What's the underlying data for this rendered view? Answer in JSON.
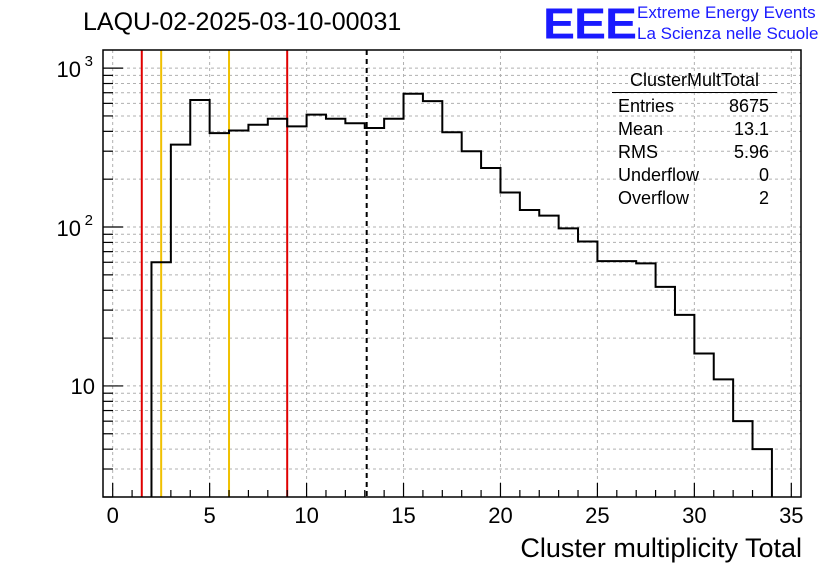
{
  "header": {
    "title": "LAQU-02-2025-03-10-00031",
    "logo_text": "EEE",
    "org_line1": "Extreme Energy Events",
    "org_line2": "La Scienza nelle Scuole"
  },
  "stats": {
    "name": "ClusterMultTotal",
    "rows": [
      {
        "label": "Entries",
        "value": "8675"
      },
      {
        "label": "Mean",
        "value": "13.1"
      },
      {
        "label": "RMS",
        "value": "5.96"
      },
      {
        "label": "Underflow",
        "value": "0"
      },
      {
        "label": "Overflow",
        "value": "2"
      }
    ]
  },
  "colors": {
    "red_lines": "#e00000",
    "yellow_lines": "#f0c000",
    "histogram": "#000000",
    "mean_line": "#000000",
    "grid": "#b0b0b0",
    "logo": "#1a1aff"
  },
  "chart_data": {
    "type": "histogram",
    "title": "LAQU-02-2025-03-10-00031",
    "xlabel": "Cluster multiplicity Total",
    "ylabel": "",
    "xlim": [
      -0.5,
      35.5
    ],
    "ylim": [
      2,
      1300
    ],
    "yscale": "log",
    "grid": true,
    "bin_width": 1,
    "bins": [
      {
        "x": 2.5,
        "y": 60
      },
      {
        "x": 3.5,
        "y": 330
      },
      {
        "x": 4.5,
        "y": 630
      },
      {
        "x": 5.5,
        "y": 390
      },
      {
        "x": 6.5,
        "y": 405
      },
      {
        "x": 7.5,
        "y": 440
      },
      {
        "x": 8.5,
        "y": 480
      },
      {
        "x": 9.5,
        "y": 430
      },
      {
        "x": 10.5,
        "y": 510
      },
      {
        "x": 11.5,
        "y": 480
      },
      {
        "x": 12.5,
        "y": 450
      },
      {
        "x": 13.5,
        "y": 420
      },
      {
        "x": 14.5,
        "y": 480
      },
      {
        "x": 15.5,
        "y": 690
      },
      {
        "x": 16.5,
        "y": 620
      },
      {
        "x": 17.5,
        "y": 395
      },
      {
        "x": 18.5,
        "y": 300
      },
      {
        "x": 19.5,
        "y": 235
      },
      {
        "x": 20.5,
        "y": 165
      },
      {
        "x": 21.5,
        "y": 128
      },
      {
        "x": 22.5,
        "y": 118
      },
      {
        "x": 23.5,
        "y": 98
      },
      {
        "x": 24.5,
        "y": 81
      },
      {
        "x": 25.5,
        "y": 61
      },
      {
        "x": 26.5,
        "y": 61
      },
      {
        "x": 27.5,
        "y": 59
      },
      {
        "x": 28.5,
        "y": 42
      },
      {
        "x": 29.5,
        "y": 28
      },
      {
        "x": 30.5,
        "y": 16
      },
      {
        "x": 31.5,
        "y": 11
      },
      {
        "x": 32.5,
        "y": 6
      },
      {
        "x": 33.5,
        "y": 4
      }
    ],
    "vertical_lines": [
      {
        "x": 1.5,
        "color": "red"
      },
      {
        "x": 2.5,
        "color": "yellow"
      },
      {
        "x": 6.0,
        "color": "yellow"
      },
      {
        "x": 9.0,
        "color": "red"
      },
      {
        "x": 13.1,
        "color": "black-dashed"
      }
    ],
    "x_ticks": [
      0,
      5,
      10,
      15,
      20,
      25,
      30,
      35
    ],
    "x_tick_labels": [
      "0",
      "5",
      "10",
      "15",
      "20",
      "25",
      "30",
      "35"
    ],
    "y_ticks": [
      10,
      100,
      1000
    ],
    "y_tick_labels": [
      "10",
      "10^2",
      "10^3"
    ]
  }
}
